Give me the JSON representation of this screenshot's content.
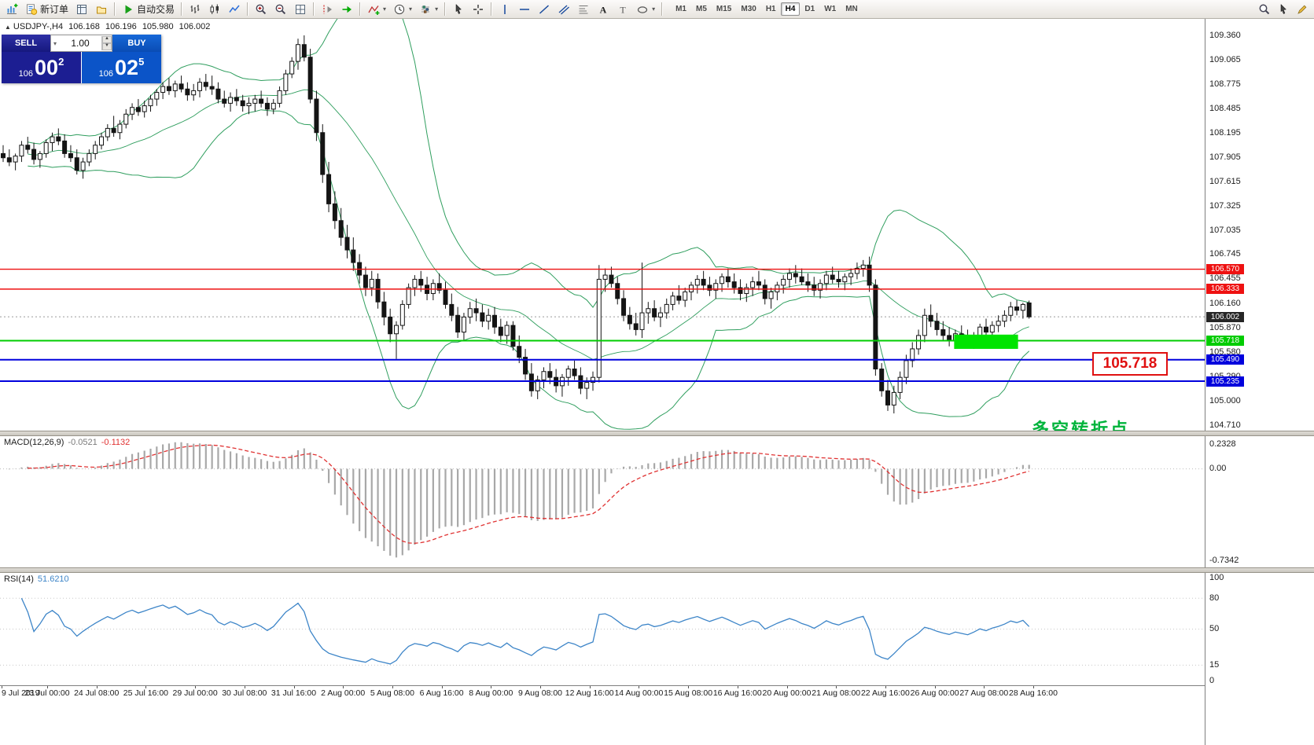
{
  "toolbar": {
    "left": [
      {
        "name": "new-chart-button",
        "icon": "chartplus"
      },
      {
        "name": "new-order-button",
        "icon": "neworder",
        "label": "新订单"
      },
      {
        "name": "market-watch-button",
        "icon": "mkt"
      },
      {
        "name": "profiles-button",
        "icon": "profile"
      },
      {
        "sep": true
      },
      {
        "name": "auto-trading-button",
        "icon": "play",
        "label": "自动交易"
      },
      {
        "sep": true
      },
      {
        "name": "bar-chart-button",
        "icon": "bars"
      },
      {
        "name": "candle-chart-button",
        "icon": "candles"
      },
      {
        "name": "line-chart-button",
        "icon": "linechart"
      },
      {
        "sep": true
      },
      {
        "name": "zoom-in-button",
        "icon": "zoomin"
      },
      {
        "name": "zoom-out-button",
        "icon": "zoomout"
      },
      {
        "name": "tile-windows-button",
        "icon": "grid"
      },
      {
        "sep": true
      },
      {
        "name": "chart-shift-button",
        "icon": "shift"
      },
      {
        "name": "auto-scroll-button",
        "icon": "autoscroll"
      },
      {
        "sep": true
      },
      {
        "name": "indicators-button",
        "icon": "indicators",
        "dd": true
      },
      {
        "name": "periods-button",
        "icon": "clock",
        "dd": true
      },
      {
        "name": "templates-button",
        "icon": "props",
        "dd": true
      },
      {
        "sep": true
      },
      {
        "name": "cursor-button",
        "icon": "cursor"
      },
      {
        "name": "crosshair-button",
        "icon": "crosshair"
      },
      {
        "sep": true
      },
      {
        "name": "vline-button",
        "icon": "vline"
      },
      {
        "name": "hline-button",
        "icon": "hline"
      },
      {
        "name": "trendline-button",
        "icon": "trend"
      },
      {
        "name": "channel-button",
        "icon": "channel"
      },
      {
        "name": "fibonacci-button",
        "icon": "fibo"
      },
      {
        "name": "text-button",
        "icon": "textA"
      },
      {
        "name": "label-button",
        "icon": "labelT"
      },
      {
        "name": "shapes-button",
        "icon": "shapes",
        "dd": true
      },
      {
        "sep": true
      }
    ],
    "timeframes": [
      "M1",
      "M5",
      "M15",
      "M30",
      "H1",
      "H4",
      "D1",
      "W1",
      "MN"
    ],
    "active_timeframe": "H4",
    "right": [
      {
        "name": "find-symbol-button",
        "icon": "magnifier"
      },
      {
        "name": "quick-cursor-button",
        "icon": "cursor"
      },
      {
        "name": "quick-draw-button",
        "icon": "pencil"
      }
    ]
  },
  "chart_header": {
    "marker": "▲",
    "symbol": "USDJPY-,H4",
    "open": "106.168",
    "high": "106.196",
    "low": "105.980",
    "close": "106.002"
  },
  "order_panel": {
    "sell_label": "SELL",
    "buy_label": "BUY",
    "volume": "1.00",
    "sell_price_prefix": "106",
    "sell_price_main": "00",
    "sell_price_sup": "2",
    "buy_price_prefix": "106",
    "buy_price_main": "02",
    "buy_price_sup": "5"
  },
  "price_axis": {
    "labels": [
      "109.360",
      "109.065",
      "108.775",
      "108.485",
      "108.195",
      "107.905",
      "107.615",
      "107.325",
      "107.035",
      "106.745",
      "106.455",
      "106.160",
      "105.870",
      "105.580",
      "105.290",
      "105.000",
      "104.710"
    ]
  },
  "levels": [
    {
      "value": 106.57,
      "label": "106.570",
      "color": "#ee1111",
      "width": 1.4
    },
    {
      "value": 106.333,
      "label": "106.333",
      "color": "#ee1111",
      "width": 1.4
    },
    {
      "value": 105.718,
      "label": "105.718",
      "color": "#00cc00",
      "width": 2
    },
    {
      "value": 105.49,
      "label": "105.490",
      "color": "#0000dd",
      "width": 2
    },
    {
      "value": 105.235,
      "label": "105.235",
      "color": "#0000dd",
      "width": 2
    }
  ],
  "current_price": {
    "value": 106.002,
    "label": "106.002",
    "tag_color": "#262626"
  },
  "objects": {
    "highlight_rect": {
      "from_bar": 154.8,
      "to_bar": 165.2,
      "price_top": 105.79,
      "price_bottom": 105.62,
      "color": "#00e400"
    },
    "callout": {
      "text": "105.718",
      "color": "#e01010"
    },
    "note": {
      "text": "多空转折点",
      "color": "#00b43c"
    }
  },
  "macd": {
    "name": "MACD(12,26,9)",
    "value_main": "-0.0521",
    "value_signal": "-0.1132",
    "scale_top": "0.2328",
    "scale_zero": "0.00",
    "scale_bottom": "-0.7342"
  },
  "rsi": {
    "name": "RSI(14)",
    "value": "51.6210",
    "levels": [
      "100",
      "80",
      "50",
      "15",
      "0"
    ]
  },
  "date_axis": [
    "9 Jul 2019",
    "23 Jul 00:00",
    "24 Jul 08:00",
    "25 Jul 16:00",
    "29 Jul 00:00",
    "30 Jul 08:00",
    "31 Jul 16:00",
    "2 Aug 00:00",
    "5 Aug 08:00",
    "6 Aug 16:00",
    "8 Aug 00:00",
    "9 Aug 08:00",
    "12 Aug 16:00",
    "14 Aug 00:00",
    "15 Aug 08:00",
    "16 Aug 16:00",
    "20 Aug 00:00",
    "21 Aug 08:00",
    "22 Aug 16:00",
    "26 Aug 00:00",
    "27 Aug 08:00",
    "28 Aug 16:00"
  ],
  "chart_data": {
    "type": "candlestick",
    "symbol": "USDJPY",
    "timeframe": "H4",
    "ylim": [
      104.71,
      109.36
    ],
    "indicators": {
      "bollinger": {
        "period": 20,
        "deviation": 2
      },
      "macd": {
        "fast": 12,
        "slow": 26,
        "signal": 9
      },
      "rsi": {
        "period": 14
      }
    },
    "colors": {
      "up": "#ffffff",
      "down": "#141414",
      "outline": "#141414",
      "bollinger": "#2f9e5e",
      "macd_histogram": "#a8a8a8",
      "macd_signal": "#e03232",
      "rsi_line": "#3d85c8",
      "current_price_line": "#9a9a9a"
    },
    "candles": [
      [
        107.95,
        108.05,
        107.85,
        107.9
      ],
      [
        107.9,
        108.0,
        107.8,
        107.85
      ],
      [
        107.85,
        107.95,
        107.75,
        107.92
      ],
      [
        107.92,
        108.1,
        107.85,
        108.05
      ],
      [
        108.05,
        108.15,
        107.95,
        108.0
      ],
      [
        108.0,
        108.08,
        107.82,
        107.88
      ],
      [
        107.88,
        107.98,
        107.78,
        107.95
      ],
      [
        107.95,
        108.12,
        107.9,
        108.08
      ],
      [
        108.08,
        108.2,
        107.98,
        108.15
      ],
      [
        108.15,
        108.25,
        108.05,
        108.1
      ],
      [
        108.1,
        108.18,
        107.9,
        107.95
      ],
      [
        107.95,
        108.05,
        107.85,
        107.9
      ],
      [
        107.9,
        108.0,
        107.7,
        107.75
      ],
      [
        107.75,
        107.9,
        107.65,
        107.85
      ],
      [
        107.85,
        108.0,
        107.8,
        107.95
      ],
      [
        107.95,
        108.1,
        107.88,
        108.05
      ],
      [
        108.05,
        108.2,
        108.0,
        108.15
      ],
      [
        108.15,
        108.3,
        108.1,
        108.25
      ],
      [
        108.25,
        108.4,
        108.15,
        108.2
      ],
      [
        108.2,
        108.35,
        108.12,
        108.3
      ],
      [
        108.3,
        108.48,
        108.25,
        108.42
      ],
      [
        108.42,
        108.55,
        108.35,
        108.5
      ],
      [
        108.5,
        108.6,
        108.4,
        108.45
      ],
      [
        108.45,
        108.58,
        108.38,
        108.52
      ],
      [
        108.52,
        108.65,
        108.45,
        108.6
      ],
      [
        108.6,
        108.72,
        108.52,
        108.68
      ],
      [
        108.68,
        108.8,
        108.6,
        108.75
      ],
      [
        108.75,
        108.85,
        108.65,
        108.7
      ],
      [
        108.7,
        108.82,
        108.62,
        108.78
      ],
      [
        108.78,
        108.88,
        108.68,
        108.72
      ],
      [
        108.72,
        108.8,
        108.58,
        108.65
      ],
      [
        108.65,
        108.78,
        108.58,
        108.7
      ],
      [
        108.7,
        108.85,
        108.62,
        108.8
      ],
      [
        108.8,
        108.9,
        108.7,
        108.75
      ],
      [
        108.75,
        108.88,
        108.65,
        108.72
      ],
      [
        108.72,
        108.8,
        108.55,
        108.6
      ],
      [
        108.6,
        108.7,
        108.5,
        108.55
      ],
      [
        108.55,
        108.68,
        108.45,
        108.62
      ],
      [
        108.62,
        108.72,
        108.52,
        108.58
      ],
      [
        108.58,
        108.65,
        108.45,
        108.52
      ],
      [
        108.52,
        108.62,
        108.42,
        108.55
      ],
      [
        108.55,
        108.65,
        108.45,
        108.6
      ],
      [
        108.6,
        108.7,
        108.5,
        108.55
      ],
      [
        108.55,
        108.62,
        108.4,
        108.48
      ],
      [
        108.48,
        108.6,
        108.42,
        108.55
      ],
      [
        108.55,
        108.75,
        108.5,
        108.7
      ],
      [
        108.7,
        108.95,
        108.65,
        108.9
      ],
      [
        108.9,
        109.1,
        108.85,
        109.05
      ],
      [
        109.05,
        109.32,
        108.95,
        109.25
      ],
      [
        109.25,
        109.36,
        109.05,
        109.1
      ],
      [
        109.1,
        109.2,
        108.55,
        108.6
      ],
      [
        108.6,
        108.7,
        108.1,
        108.2
      ],
      [
        108.2,
        108.3,
        107.6,
        107.7
      ],
      [
        107.7,
        107.85,
        107.25,
        107.35
      ],
      [
        107.35,
        107.5,
        107.05,
        107.15
      ],
      [
        107.15,
        107.3,
        106.85,
        106.95
      ],
      [
        106.95,
        107.1,
        106.7,
        106.8
      ],
      [
        106.8,
        106.95,
        106.55,
        106.65
      ],
      [
        106.65,
        106.75,
        106.4,
        106.5
      ],
      [
        106.5,
        106.6,
        106.25,
        106.35
      ],
      [
        106.35,
        106.55,
        106.25,
        106.45
      ],
      [
        106.45,
        106.52,
        106.1,
        106.18
      ],
      [
        106.18,
        106.3,
        105.9,
        106.0
      ],
      [
        106.0,
        106.1,
        105.7,
        105.8
      ],
      [
        105.8,
        105.95,
        105.5,
        105.9
      ],
      [
        105.9,
        106.2,
        105.85,
        106.15
      ],
      [
        106.15,
        106.4,
        106.1,
        106.35
      ],
      [
        106.35,
        106.5,
        106.25,
        106.45
      ],
      [
        106.45,
        106.55,
        106.3,
        106.38
      ],
      [
        106.38,
        106.48,
        106.2,
        106.28
      ],
      [
        106.28,
        106.45,
        106.2,
        106.4
      ],
      [
        106.4,
        106.52,
        106.28,
        106.32
      ],
      [
        106.32,
        106.42,
        106.1,
        106.15
      ],
      [
        106.15,
        106.28,
        105.95,
        106.02
      ],
      [
        106.02,
        106.12,
        105.75,
        105.82
      ],
      [
        105.82,
        106.05,
        105.72,
        106.0
      ],
      [
        106.0,
        106.18,
        105.92,
        106.1
      ],
      [
        106.1,
        106.22,
        105.95,
        106.05
      ],
      [
        106.05,
        106.15,
        105.88,
        105.95
      ],
      [
        105.95,
        106.1,
        105.85,
        106.02
      ],
      [
        106.02,
        106.12,
        105.8,
        105.88
      ],
      [
        105.88,
        105.98,
        105.7,
        105.78
      ],
      [
        105.78,
        105.95,
        105.68,
        105.9
      ],
      [
        105.9,
        105.95,
        105.6,
        105.65
      ],
      [
        105.65,
        105.78,
        105.45,
        105.52
      ],
      [
        105.52,
        105.62,
        105.25,
        105.32
      ],
      [
        105.32,
        105.45,
        105.05,
        105.12
      ],
      [
        105.12,
        105.3,
        105.02,
        105.25
      ],
      [
        105.25,
        105.4,
        105.15,
        105.35
      ],
      [
        105.35,
        105.45,
        105.2,
        105.28
      ],
      [
        105.28,
        105.38,
        105.1,
        105.18
      ],
      [
        105.18,
        105.32,
        105.05,
        105.28
      ],
      [
        105.28,
        105.42,
        105.18,
        105.38
      ],
      [
        105.38,
        105.48,
        105.25,
        105.3
      ],
      [
        105.3,
        105.4,
        105.08,
        105.15
      ],
      [
        105.15,
        105.28,
        105.02,
        105.22
      ],
      [
        105.22,
        105.35,
        105.12,
        105.28
      ],
      [
        105.28,
        106.62,
        105.22,
        106.45
      ],
      [
        106.45,
        106.58,
        106.3,
        106.5
      ],
      [
        106.5,
        106.6,
        106.35,
        106.4
      ],
      [
        106.4,
        106.48,
        106.15,
        106.22
      ],
      [
        106.22,
        106.32,
        105.95,
        106.02
      ],
      [
        106.02,
        106.12,
        105.85,
        105.92
      ],
      [
        105.92,
        106.05,
        105.78,
        105.85
      ],
      [
        105.85,
        106.65,
        105.75,
        106.05
      ],
      [
        106.05,
        106.18,
        105.92,
        106.1
      ],
      [
        106.1,
        106.2,
        105.95,
        106.0
      ],
      [
        106.0,
        106.12,
        105.88,
        106.05
      ],
      [
        106.05,
        106.22,
        105.98,
        106.15
      ],
      [
        106.15,
        106.3,
        106.08,
        106.25
      ],
      [
        106.25,
        106.38,
        106.15,
        106.2
      ],
      [
        106.2,
        106.35,
        106.12,
        106.3
      ],
      [
        106.3,
        106.42,
        106.2,
        106.38
      ],
      [
        106.38,
        106.5,
        106.28,
        106.45
      ],
      [
        106.45,
        106.55,
        106.32,
        106.38
      ],
      [
        106.38,
        106.48,
        106.25,
        106.32
      ],
      [
        106.32,
        106.45,
        106.22,
        106.4
      ],
      [
        106.4,
        106.52,
        106.3,
        106.48
      ],
      [
        106.48,
        106.58,
        106.35,
        106.42
      ],
      [
        106.42,
        106.52,
        106.28,
        106.35
      ],
      [
        106.35,
        106.45,
        106.2,
        106.28
      ],
      [
        106.28,
        106.4,
        106.18,
        106.35
      ],
      [
        106.35,
        106.48,
        106.25,
        106.42
      ],
      [
        106.42,
        106.55,
        106.32,
        106.38
      ],
      [
        106.38,
        106.45,
        106.15,
        106.22
      ],
      [
        106.22,
        106.35,
        106.1,
        106.3
      ],
      [
        106.3,
        106.42,
        106.2,
        106.38
      ],
      [
        106.38,
        106.5,
        106.28,
        106.45
      ],
      [
        106.45,
        106.58,
        106.35,
        106.52
      ],
      [
        106.52,
        106.62,
        106.4,
        106.48
      ],
      [
        106.48,
        106.58,
        106.38,
        106.42
      ],
      [
        106.42,
        106.52,
        106.3,
        106.38
      ],
      [
        106.38,
        106.48,
        106.25,
        106.32
      ],
      [
        106.32,
        106.45,
        106.22,
        106.4
      ],
      [
        106.4,
        106.55,
        106.32,
        106.5
      ],
      [
        106.5,
        106.6,
        106.4,
        106.45
      ],
      [
        106.45,
        106.55,
        106.35,
        106.42
      ],
      [
        106.42,
        106.52,
        106.32,
        106.48
      ],
      [
        106.48,
        106.58,
        106.38,
        106.52
      ],
      [
        106.52,
        106.65,
        106.45,
        106.58
      ],
      [
        106.58,
        106.68,
        106.48,
        106.62
      ],
      [
        106.62,
        106.72,
        106.3,
        106.38
      ],
      [
        106.38,
        106.45,
        105.3,
        105.38
      ],
      [
        105.38,
        105.45,
        105.05,
        105.12
      ],
      [
        105.12,
        105.25,
        104.88,
        104.95
      ],
      [
        104.95,
        105.18,
        104.85,
        105.1
      ],
      [
        105.1,
        105.35,
        105.02,
        105.28
      ],
      [
        105.28,
        105.55,
        105.2,
        105.48
      ],
      [
        105.48,
        105.7,
        105.4,
        105.62
      ],
      [
        105.62,
        105.85,
        105.55,
        105.78
      ],
      [
        105.78,
        106.1,
        105.7,
        106.02
      ],
      [
        106.02,
        106.15,
        105.88,
        105.95
      ],
      [
        105.95,
        106.05,
        105.78,
        105.85
      ],
      [
        105.85,
        105.95,
        105.72,
        105.78
      ],
      [
        105.78,
        105.88,
        105.65,
        105.72
      ],
      [
        105.72,
        105.85,
        105.62,
        105.8
      ],
      [
        105.8,
        105.9,
        105.7,
        105.75
      ],
      [
        105.75,
        105.85,
        105.65,
        105.7
      ],
      [
        105.7,
        105.82,
        105.62,
        105.78
      ],
      [
        105.78,
        105.92,
        105.7,
        105.88
      ],
      [
        105.88,
        105.98,
        105.78,
        105.82
      ],
      [
        105.82,
        105.95,
        105.75,
        105.9
      ],
      [
        105.9,
        106.02,
        105.82,
        105.95
      ],
      [
        105.95,
        106.08,
        105.88,
        106.02
      ],
      [
        106.02,
        106.18,
        105.95,
        106.12
      ],
      [
        106.12,
        106.2,
        106.02,
        106.08
      ],
      [
        106.08,
        106.17,
        105.98,
        106.15
      ],
      [
        106.168,
        106.196,
        105.98,
        106.002
      ]
    ]
  }
}
